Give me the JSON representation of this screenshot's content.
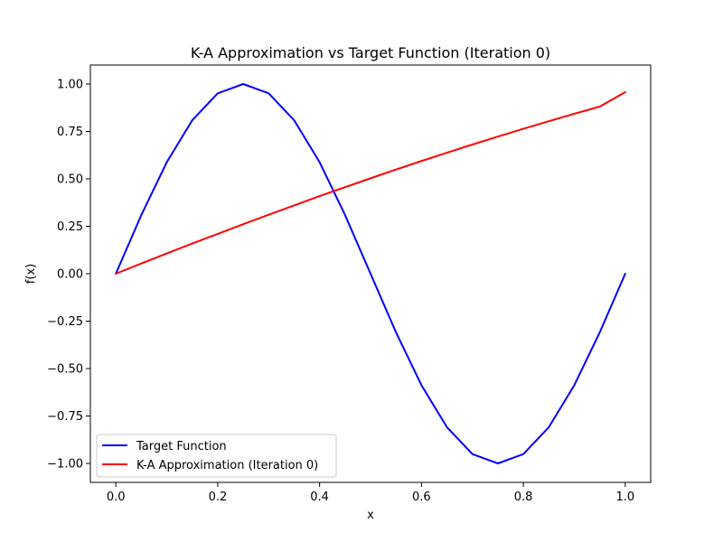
{
  "chart_data": {
    "type": "line",
    "title": "K-A Approximation vs Target Function (Iteration 0)",
    "xlabel": "x",
    "ylabel": "f(x)",
    "xlim": [
      -0.05,
      1.05
    ],
    "ylim": [
      -1.1,
      1.1
    ],
    "xticks": [
      0.0,
      0.2,
      0.4,
      0.6,
      0.8,
      1.0
    ],
    "xtick_labels": [
      "0.0",
      "0.2",
      "0.4",
      "0.6",
      "0.8",
      "1.0"
    ],
    "yticks": [
      -1.0,
      -0.75,
      -0.5,
      -0.25,
      0.0,
      0.25,
      0.5,
      0.75,
      1.0
    ],
    "ytick_labels": [
      "−1.00",
      "−0.75",
      "−0.50",
      "−0.25",
      "0.00",
      "0.25",
      "0.50",
      "0.75",
      "1.00"
    ],
    "grid": false,
    "legend_position": "lower-left",
    "x": [
      0.0,
      0.05,
      0.1,
      0.15,
      0.2,
      0.25,
      0.3,
      0.35,
      0.4,
      0.45,
      0.5,
      0.55,
      0.6,
      0.65,
      0.7,
      0.75,
      0.8,
      0.85,
      0.9,
      0.95,
      1.0
    ],
    "series": [
      {
        "name": "Target Function",
        "color": "#0000ff",
        "values": [
          0.0,
          0.309,
          0.588,
          0.809,
          0.951,
          1.0,
          0.951,
          0.809,
          0.588,
          0.309,
          0.0,
          -0.309,
          -0.588,
          -0.809,
          -0.951,
          -1.0,
          -0.951,
          -0.809,
          -0.588,
          -0.309,
          0.0
        ]
      },
      {
        "name": "K-A Approximation (Iteration 0)",
        "color": "#ff0000",
        "values": [
          0.0,
          0.054,
          0.107,
          0.159,
          0.21,
          0.261,
          0.311,
          0.36,
          0.409,
          0.456,
          0.503,
          0.549,
          0.594,
          0.638,
          0.681,
          0.723,
          0.764,
          0.804,
          0.843,
          0.881,
          0.957
        ]
      }
    ]
  }
}
